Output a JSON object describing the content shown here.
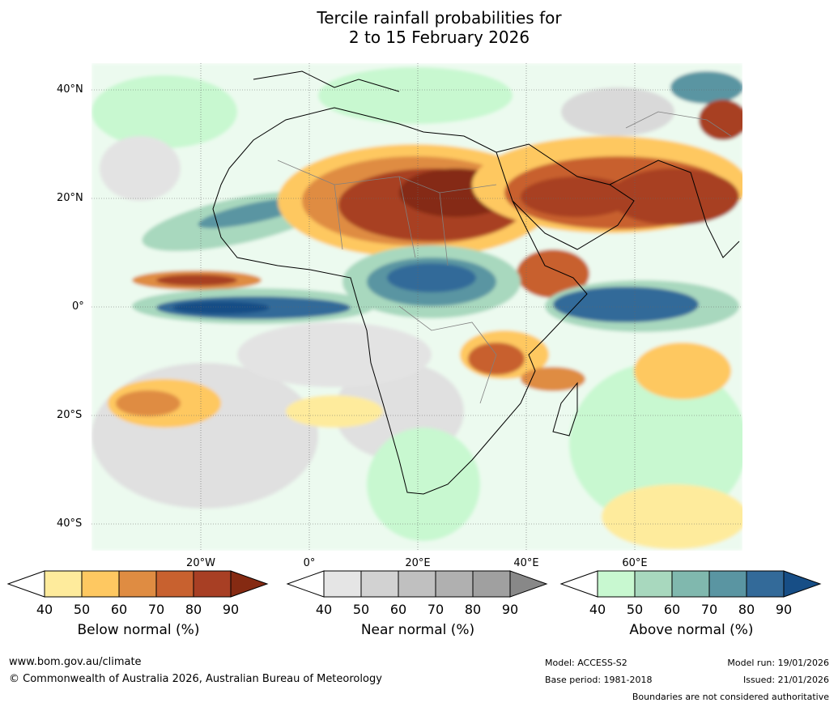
{
  "title": {
    "line1": "Tercile rainfall probabilities for",
    "line2": "2 to 15 February 2026"
  },
  "map": {
    "lat_labels": [
      "40°N",
      "20°N",
      "0°",
      "20°S",
      "40°S"
    ],
    "lon_labels": [
      "20°W",
      "0°",
      "20°E",
      "40°E",
      "60°E"
    ]
  },
  "legends": [
    {
      "title": "Below normal (%)",
      "ticks": [
        "40",
        "50",
        "60",
        "70",
        "80",
        "90"
      ],
      "colors": [
        "#ffffff",
        "#feeb9c",
        "#fec861",
        "#df8c42",
        "#c8612f",
        "#a83f24",
        "#852a12"
      ]
    },
    {
      "title": "Near normal (%)",
      "ticks": [
        "40",
        "50",
        "60",
        "70",
        "80",
        "90"
      ],
      "colors": [
        "#ffffff",
        "#e5e5e5",
        "#d2d2d2",
        "#c0c0c0",
        "#b0b0b0",
        "#a0a0a0",
        "#888888"
      ]
    },
    {
      "title": "Above normal (%)",
      "ticks": [
        "40",
        "50",
        "60",
        "70",
        "80",
        "90"
      ],
      "colors": [
        "#ffffff",
        "#c8f8d0",
        "#a8d8be",
        "#80b8ae",
        "#5a95a2",
        "#336a99",
        "#174e86"
      ]
    }
  ],
  "footer": {
    "website": "www.bom.gov.au/climate",
    "copyright": "© Commonwealth of Australia 2026, Australian Bureau of Meteorology",
    "model": "Model: ACCESS-S2",
    "base_period": "Base period: 1981-2018",
    "model_run": "Model run: 19/01/2026",
    "issued": "Issued: 21/01/2026",
    "disclaimer": "Boundaries are not considered authoritative"
  }
}
